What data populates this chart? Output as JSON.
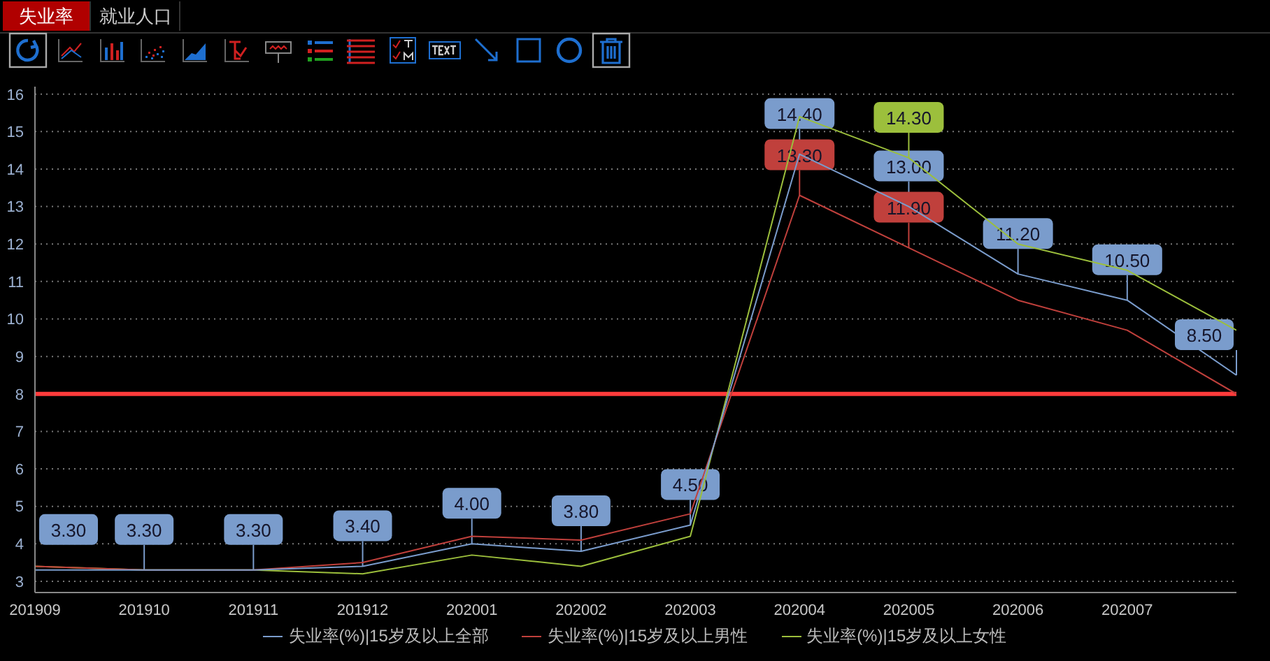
{
  "chart_data": {
    "type": "line",
    "categories": [
      "201909",
      "201910",
      "201911",
      "201912",
      "202001",
      "202002",
      "202003",
      "202004",
      "202005",
      "202006",
      "202007",
      null
    ],
    "series": [
      {
        "name": "失业率(%)|15岁及以上全部",
        "color": "#7a9ccc",
        "values": [
          3.3,
          3.3,
          3.3,
          3.4,
          4.0,
          3.8,
          4.5,
          14.4,
          13.0,
          11.2,
          10.5,
          8.5
        ],
        "value_labels": [
          "3.30",
          "3.30",
          "3.30",
          "3.40",
          "4.00",
          "3.80",
          "4.50",
          "14.40",
          "13.00",
          "11.20",
          "10.50",
          "8.50"
        ]
      },
      {
        "name": "失业率(%)|15岁及以上男性",
        "color": "#c0403c",
        "values": [
          3.4,
          3.3,
          3.3,
          3.5,
          4.2,
          4.1,
          4.8,
          13.3,
          11.9,
          10.5,
          9.7,
          8.0
        ],
        "value_labels": [
          null,
          null,
          null,
          null,
          null,
          null,
          null,
          "13.30",
          "11.90",
          null,
          null,
          null
        ]
      },
      {
        "name": "失业率(%)|15岁及以上女性",
        "color": "#9cbf3c",
        "values": [
          3.4,
          3.3,
          3.3,
          3.2,
          3.7,
          3.4,
          4.2,
          15.4,
          14.3,
          12.0,
          11.3,
          9.7
        ],
        "value_labels": [
          null,
          null,
          null,
          null,
          null,
          null,
          null,
          null,
          "14.30",
          null,
          null,
          null
        ]
      }
    ],
    "ylim": [
      2.7,
      16.2
    ],
    "yticks": [
      3,
      4,
      5,
      6,
      7,
      8,
      9,
      10,
      11,
      12,
      13,
      14,
      15,
      16
    ],
    "grid": "y",
    "legend": "bottom",
    "marker": "none",
    "line_style": "solid",
    "annotations": [
      "失业率",
      "就业人口"
    ],
    "ref_lines": [
      {
        "axis": "y",
        "value": 8,
        "color": "#ff3b3b"
      }
    ]
  }
}
